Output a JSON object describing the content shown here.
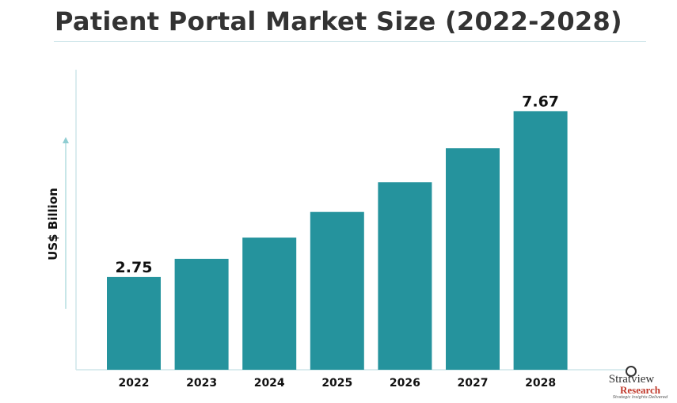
{
  "chart_data": {
    "type": "bar",
    "title": "Patient Portal Market Size (2022-2028)",
    "ylabel": "US$ Billion",
    "xlabel": "",
    "categories": [
      "2022",
      "2023",
      "2024",
      "2025",
      "2026",
      "2027",
      "2028"
    ],
    "values": [
      2.75,
      3.29,
      3.92,
      4.68,
      5.56,
      6.57,
      7.67
    ],
    "data_labels": {
      "0": "2.75",
      "6": "7.67"
    },
    "ylim": [
      0,
      8.9
    ],
    "grid": false,
    "legend": "none",
    "bar_color": "#25939d",
    "axis_color": "#cfe6ea"
  },
  "logo": {
    "name": "Stratview",
    "sub": "Research",
    "tagline": "Strategic Insights Delivered"
  }
}
